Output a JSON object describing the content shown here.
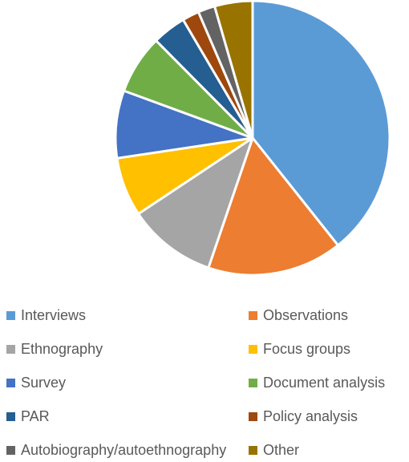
{
  "chart_data": {
    "type": "pie",
    "title": "",
    "categories": [
      "Interviews",
      "Observations",
      "Ethnography",
      "Focus groups",
      "Survey",
      "Document analysis",
      "PAR",
      "Policy analysis",
      "Autobiography/autoethnography",
      "Other"
    ],
    "values": [
      39.5,
      16,
      10.5,
      7,
      8,
      7,
      4,
      2,
      2,
      4.5
    ],
    "colors": [
      "#5b9bd5",
      "#ed7d31",
      "#a5a5a5",
      "#ffc000",
      "#4472c4",
      "#70ad47",
      "#255e91",
      "#9e480e",
      "#636363",
      "#997300"
    ],
    "legend_position": "bottom"
  }
}
